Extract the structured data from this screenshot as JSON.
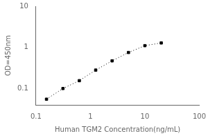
{
  "chart_data": {
    "type": "line",
    "xlabel": "Human TGM2 Concentration(ng/mL)",
    "ylabel": "OD=450nm",
    "x": [
      0.156,
      0.313,
      0.625,
      1.25,
      2.5,
      5.0,
      10.0,
      20.0
    ],
    "values": [
      0.055,
      0.1,
      0.155,
      0.28,
      0.47,
      0.75,
      1.1,
      1.28
    ],
    "xlim": [
      0.1,
      100
    ],
    "ylim": [
      0.04,
      10
    ],
    "xticks": [
      0.1,
      1,
      10,
      100
    ],
    "yticks": [
      0.1,
      1,
      10
    ],
    "log": true,
    "grid": false,
    "color": "black",
    "marker": "square",
    "line_style": "dotted"
  }
}
